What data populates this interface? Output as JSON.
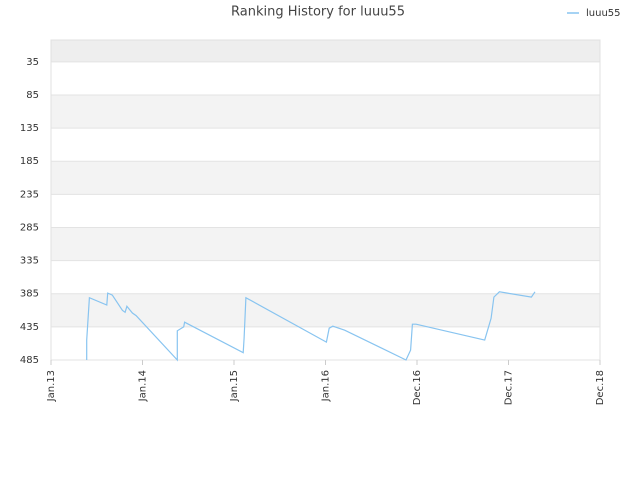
{
  "chart_data": {
    "type": "line",
    "title": "Ranking History for luuu55",
    "x": [
      0.39,
      0.39,
      0.42,
      0.61,
      0.62,
      0.67,
      0.78,
      0.81,
      0.83,
      0.89,
      0.93,
      1.38,
      1.38,
      1.45,
      1.46,
      2.1,
      2.11,
      2.13,
      3.01,
      3.04,
      3.08,
      3.21,
      3.88,
      3.93,
      3.95,
      3.99,
      4.74,
      4.81,
      4.84,
      4.9,
      5.25,
      5.29
    ],
    "series": [
      {
        "name": "luuu55",
        "color": "#88c4f0",
        "values": [
          485,
          455,
          391,
          402,
          384,
          387,
          410,
          413,
          404,
          414,
          418,
          485,
          441,
          435,
          428,
          474,
          452,
          391,
          458,
          437,
          434,
          440,
          485,
          470,
          431,
          431,
          455,
          422,
          390,
          382,
          390,
          382
        ]
      }
    ],
    "xlim": [
      0,
      6
    ],
    "xticks": [
      {
        "value": 0,
        "label": "Jan.13"
      },
      {
        "value": 1,
        "label": "Jan.14"
      },
      {
        "value": 2,
        "label": "Jan.15"
      },
      {
        "value": 3,
        "label": "Jan.16"
      },
      {
        "value": 4,
        "label": "Dec.16"
      },
      {
        "value": 5,
        "label": "Dec.17"
      },
      {
        "value": 6,
        "label": "Dec.18"
      }
    ],
    "ylim": [
      485,
      2
    ],
    "y_inverted": true,
    "yticks": [
      35,
      85,
      135,
      185,
      235,
      285,
      335,
      385,
      435,
      485
    ],
    "grid": true,
    "legend": "top-right"
  }
}
